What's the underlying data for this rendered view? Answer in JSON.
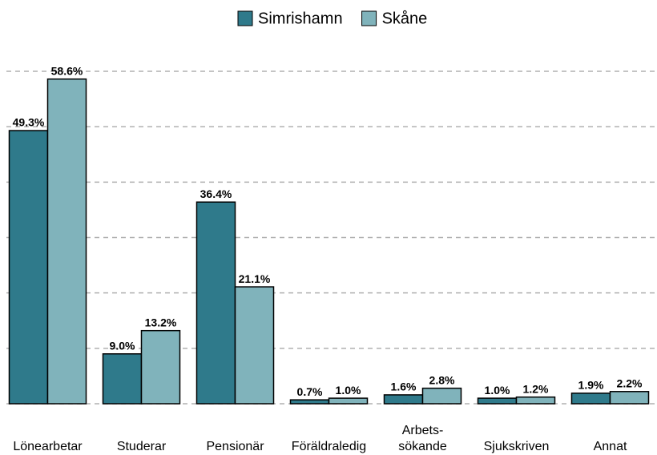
{
  "chart_data": {
    "type": "bar",
    "categories": [
      "Lönearbetar",
      "Studerar",
      "Pensionär",
      "Föräldraledig",
      "Arbets-\nsökande",
      "Sjukskriven",
      "Annat"
    ],
    "series": [
      {
        "name": "Simrishamn",
        "color": "#2f7a8b",
        "values": [
          49.3,
          9.0,
          36.4,
          0.7,
          1.6,
          1.0,
          1.9
        ],
        "value_labels": [
          "49.3%",
          "9.0%",
          "36.4%",
          "0.7%",
          "1.6%",
          "1.0%",
          "1.9%"
        ]
      },
      {
        "name": "Skåne",
        "color": "#80b3bb",
        "values": [
          58.6,
          13.2,
          21.1,
          1.0,
          2.8,
          1.2,
          2.2
        ],
        "value_labels": [
          "58.6%",
          "13.2%",
          "21.1%",
          "1.0%",
          "2.8%",
          "1.2%",
          "2.2%"
        ]
      }
    ],
    "ylim": [
      0,
      60
    ],
    "yticks": [
      0,
      10,
      20,
      30,
      40,
      50,
      60
    ],
    "grid": true,
    "legend": "top"
  }
}
